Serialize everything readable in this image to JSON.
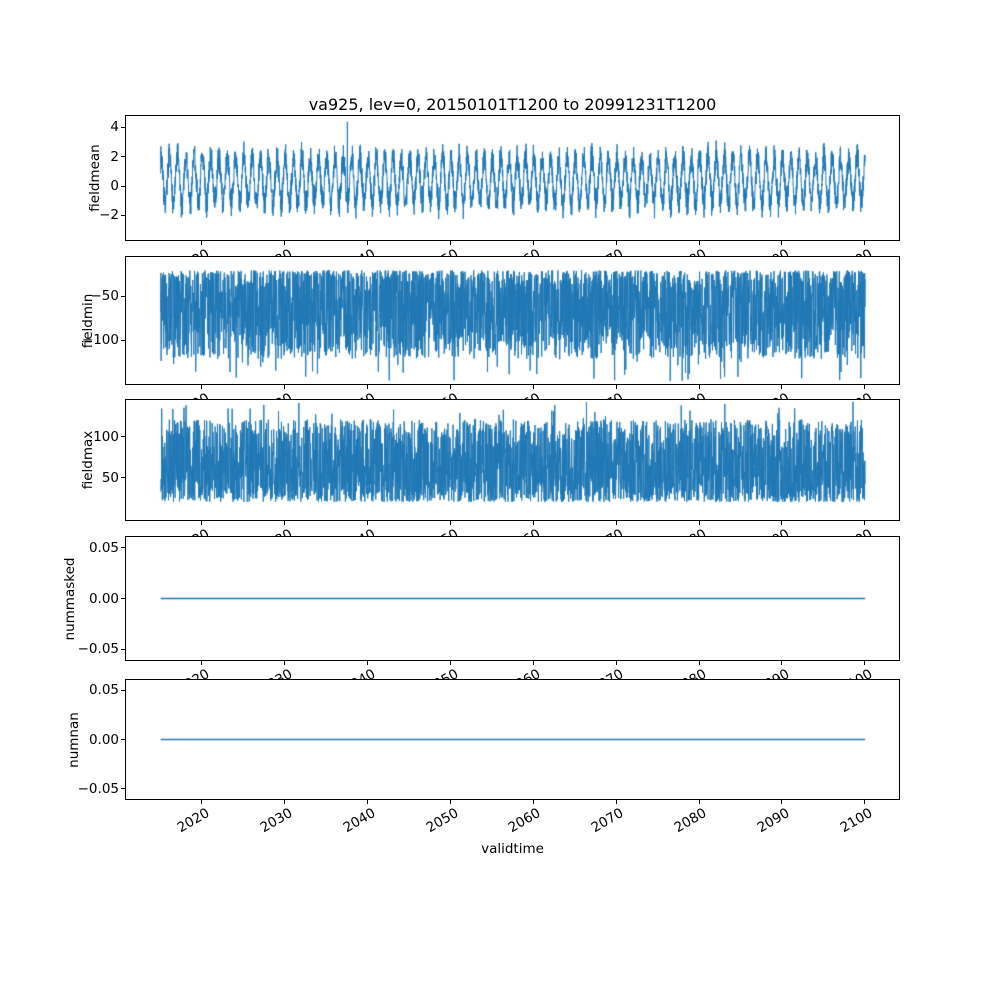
{
  "figure": {
    "title": "va925, lev=0, 20150101T1200 to 20991231T1200",
    "xlabel": "validtime",
    "line_color": "#1f77b4",
    "background": "#ffffff",
    "xlim": [
      2010.8,
      2104.3
    ],
    "data_x_range": [
      2015.0,
      2100.2
    ],
    "xticks": [
      2020,
      2030,
      2040,
      2050,
      2060,
      2070,
      2080,
      2090,
      2100
    ]
  },
  "chart_data": [
    {
      "type": "line",
      "ylabel": "fieldmean",
      "ylim": [
        -3.75,
        4.85
      ],
      "yticks": [
        {
          "v": 4,
          "label": "4"
        },
        {
          "v": 2,
          "label": "2"
        },
        {
          "v": 0,
          "label": "0"
        },
        {
          "v": -2,
          "label": "−2"
        }
      ],
      "series": {
        "kind": "seasonal_noise",
        "mean": 0.4,
        "seasonal_amp": 1.9,
        "amp_jitter": [
          0.6,
          1.1
        ],
        "noise_amp": 1.5,
        "cycles": 85,
        "clip": [
          -3.3,
          4.5
        ],
        "spike": 4.45,
        "spike_at": 0.265,
        "points": 4200,
        "seed": 7
      },
      "summary": "Daily field mean oscillating seasonally between about -2.5 and +3.3 with one isolated peak near 4.4 around 2037; long-term mean near 0.3"
    },
    {
      "type": "line",
      "ylabel": "fieldmin",
      "ylim": [
        -151,
        -4.5
      ],
      "yticks": [
        {
          "v": -50,
          "label": "−50"
        },
        {
          "v": -100,
          "label": "−100"
        }
      ],
      "series": {
        "kind": "band_noise",
        "edge": -20,
        "far": -122,
        "extreme": -148,
        "bias": 1.35,
        "extreme_p": 0.012,
        "points": 3600,
        "seed": 13
      },
      "summary": "Daily field minimum: dense noisy band from about -20 down to about -130 with occasional extremes near -148"
    },
    {
      "type": "line",
      "ylabel": "fieldmax",
      "ylim": [
        -2.5,
        146
      ],
      "yticks": [
        {
          "v": 100,
          "label": "100"
        },
        {
          "v": 50,
          "label": "50"
        }
      ],
      "series": {
        "kind": "band_noise",
        "edge": 20,
        "far": 122,
        "extreme": 144,
        "bias": 1.35,
        "extreme_p": 0.012,
        "points": 3600,
        "seed": 29
      },
      "summary": "Daily field maximum: dense noisy band from about 20 up to about 130 with occasional extremes near 144"
    },
    {
      "type": "line",
      "ylabel": "nummasked",
      "ylim": [
        -0.0614,
        0.0614
      ],
      "yticks": [
        {
          "v": 0.05,
          "label": "0.05"
        },
        {
          "v": 0,
          "label": "0.00"
        },
        {
          "v": -0.05,
          "label": "−0.05"
        }
      ],
      "series": {
        "kind": "constant",
        "value": 0
      },
      "summary": "Number of masked points: constant 0 for the whole period"
    },
    {
      "type": "line",
      "ylabel": "numnan",
      "ylim": [
        -0.0614,
        0.0614
      ],
      "yticks": [
        {
          "v": 0.05,
          "label": "0.05"
        },
        {
          "v": 0,
          "label": "0.00"
        },
        {
          "v": -0.05,
          "label": "−0.05"
        }
      ],
      "series": {
        "kind": "constant",
        "value": 0
      },
      "summary": "Number of NaN points: constant 0 for the whole period"
    }
  ]
}
